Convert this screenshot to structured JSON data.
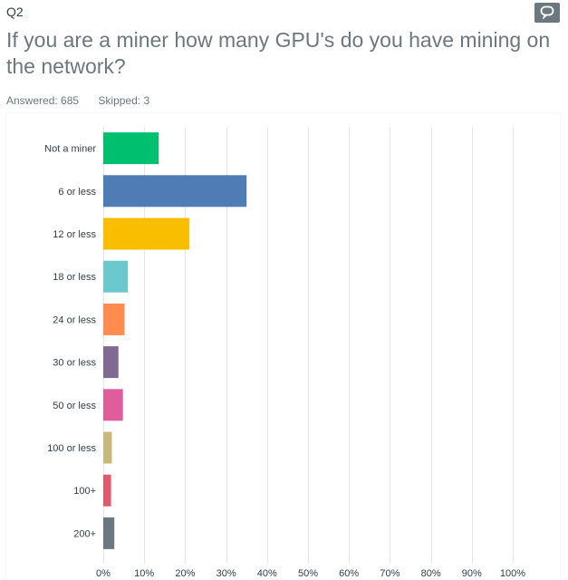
{
  "question": {
    "number": "Q2",
    "title": "If you are a miner how many GPU's do you have mining on the network?",
    "answered": "Answered: 685",
    "skipped": "Skipped: 3",
    "comment_icon": "comment-icon"
  },
  "colors": {
    "grid": "#e4e6e7",
    "label": "#333e48",
    "accent": "#6b787f"
  },
  "chart_data": {
    "type": "bar",
    "orientation": "horizontal",
    "categories": [
      "Not a miner",
      "6 or less",
      "12 or less",
      "18 or less",
      "24 or less",
      "30 or less",
      "50 or less",
      "100 or less",
      "100+",
      "200+"
    ],
    "values": [
      13.5,
      35,
      21,
      6,
      5.2,
      3.7,
      4.8,
      2.1,
      1.9,
      2.7
    ],
    "colors": [
      "#00bf6f",
      "#507cb6",
      "#f9be00",
      "#6bc8cd",
      "#ff8b4f",
      "#7f6a93",
      "#e05c9a",
      "#c9b87c",
      "#e05a6e",
      "#6b787f"
    ],
    "xlim": [
      0,
      100
    ],
    "xticks": [
      "0%",
      "10%",
      "20%",
      "30%",
      "40%",
      "50%",
      "60%",
      "70%",
      "80%",
      "90%",
      "100%"
    ],
    "xlabel": "",
    "ylabel": "",
    "grid": true
  }
}
